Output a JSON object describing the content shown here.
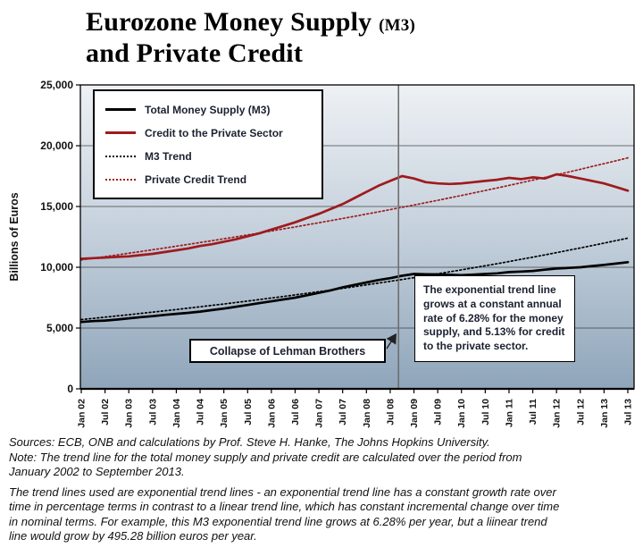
{
  "title": {
    "line1_main": "Eurozone Money Supply",
    "line1_paren": "(M3)",
    "line2": "and Private Credit"
  },
  "annotations": {
    "trend_note": "The exponential trend line grows at a constant annual rate of 6.28% for the money supply, and 5.13% for credit to the private sector."
  },
  "chart_data": {
    "type": "line",
    "title": "Eurozone Money Supply (M3) and Private Credit",
    "ylabel": "Billions of Euros",
    "ylim": [
      0,
      25000
    ],
    "y_tick_step": 5000,
    "y_tick_labels": [
      "0",
      "5,000",
      "10,000",
      "15,000",
      "20,000",
      "25,000"
    ],
    "x_tick_labels": [
      "Jan 02",
      "Jul 02",
      "Jan 03",
      "Jul 03",
      "Jan 04",
      "Jul 04",
      "Jan 05",
      "Jul 05",
      "Jan 06",
      "Jul 06",
      "Jan 07",
      "Jul 07",
      "Jan 08",
      "Jul 08",
      "Jan 09",
      "Jul 09",
      "Jan 10",
      "Jul 10",
      "Jan 11",
      "Jul 11",
      "Jan 12",
      "Jul 12",
      "Jan 13",
      "Jul 13"
    ],
    "points_per_tick": 2,
    "x_unit": "quarterly from Jan 2002 to Jul 2013",
    "grid": true,
    "legend_position": "top-left",
    "background_gradient": [
      "#eef1f4",
      "#c3cfdb",
      "#8fa5ba"
    ],
    "series": [
      {
        "name": "Total Money Supply (M3)",
        "color": "#000000",
        "line": "solid",
        "values": [
          5500,
          5570,
          5620,
          5700,
          5800,
          5900,
          5980,
          6080,
          6170,
          6250,
          6350,
          6480,
          6600,
          6750,
          6900,
          7050,
          7200,
          7350,
          7500,
          7700,
          7900,
          8100,
          8350,
          8550,
          8750,
          8950,
          9100,
          9300,
          9450,
          9430,
          9410,
          9380,
          9350,
          9400,
          9450,
          9500,
          9600,
          9650,
          9700,
          9800,
          9900,
          9950,
          10000,
          10100,
          10200,
          10300,
          10420
        ]
      },
      {
        "name": "Credit to the Private Sector",
        "color": "#9e1b1e",
        "line": "solid",
        "values": [
          10700,
          10750,
          10800,
          10850,
          10900,
          11000,
          11100,
          11250,
          11400,
          11550,
          11750,
          11900,
          12100,
          12300,
          12550,
          12800,
          13100,
          13400,
          13700,
          14050,
          14400,
          14800,
          15200,
          15700,
          16200,
          16700,
          17100,
          17500,
          17300,
          17000,
          16900,
          16850,
          16900,
          17000,
          17100,
          17200,
          17350,
          17250,
          17400,
          17300,
          17650,
          17500,
          17300,
          17100,
          16900,
          16600,
          16300
        ]
      },
      {
        "name": "M3 Trend",
        "color": "#000000",
        "line": "dotted",
        "trend": true,
        "start": 5700,
        "end": 12400,
        "annual_growth_pct": 6.28
      },
      {
        "name": "Private Credit Trend",
        "color": "#9e1b1e",
        "line": "dotted",
        "trend": true,
        "start": 10600,
        "end": 19000,
        "annual_growth_pct": 5.13
      }
    ],
    "event_line": {
      "x_index": 26.7,
      "label": "Collapse of Lehman Brothers"
    }
  },
  "footer": {
    "sources": "Sources: ECB, ONB and calculations by Prof. Steve H. Hanke, The Johns Hopkins University.",
    "note": "Note: The trend line for the total money supply and private credit are calculated over the period from January 2002 to September 2013.",
    "para": "The trend lines used are exponential trend lines - an exponential trend line has a constant growth rate over time in percentage terms in contrast to a linear trend line, which has constant incremental change over time in nominal terms. For example, this M3 exponential trend line grows at 6.28% per year, but a liinear trend line would grow by 495.28 billion euros per year."
  }
}
